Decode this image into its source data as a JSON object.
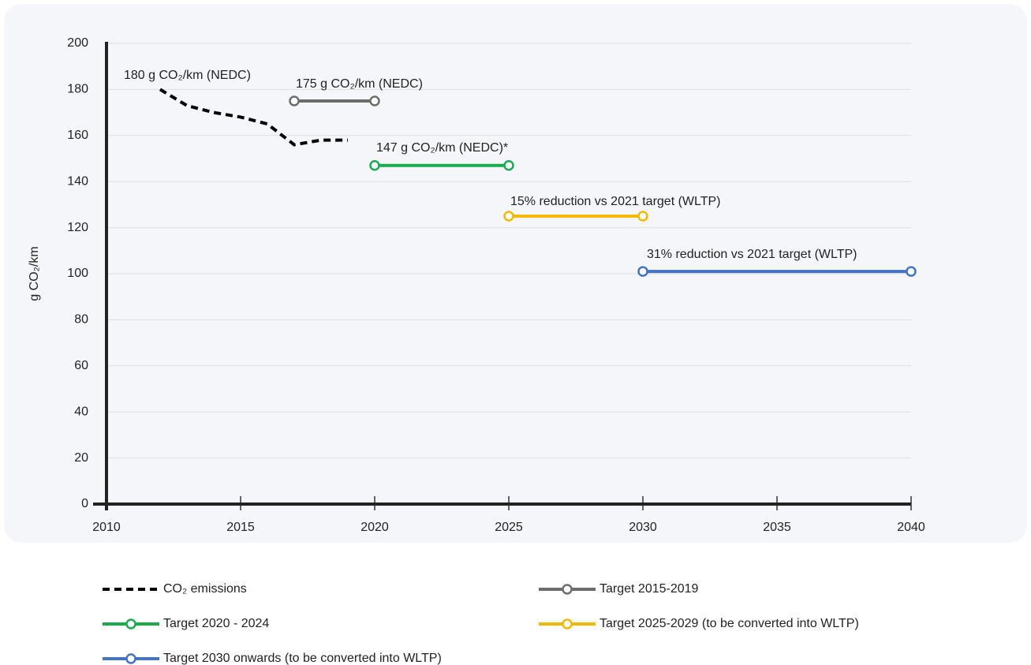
{
  "chart_data": {
    "type": "line",
    "y_label": "g CO₂/km",
    "xlim": [
      2010,
      2040
    ],
    "xticks": [
      2010,
      2015,
      2020,
      2025,
      2030,
      2035,
      2040
    ],
    "ylim": [
      0,
      200
    ],
    "yticks": [
      0,
      20,
      40,
      60,
      80,
      100,
      120,
      140,
      160,
      180,
      200
    ],
    "grid": true,
    "series": [
      {
        "name": "CO₂ emissions",
        "color": "#000000",
        "style": "dashed",
        "x": [
          2012,
          2013,
          2014,
          2015,
          2016,
          2017,
          2018,
          2019
        ],
        "values": [
          180,
          173,
          170,
          168,
          165,
          156,
          158,
          158
        ]
      },
      {
        "name": "Target 2015-2019",
        "color": "#6d6d6d",
        "marker": "circle",
        "x": [
          2017,
          2020
        ],
        "values": [
          175,
          175
        ]
      },
      {
        "name": "Target 2020 - 2024",
        "color": "#1aab4b",
        "marker": "circle",
        "x": [
          2020,
          2025
        ],
        "values": [
          147,
          147
        ]
      },
      {
        "name": "Target 2025-2029 (to be converted into WLTP)",
        "color": "#f5b800",
        "marker": "circle",
        "x": [
          2025,
          2030
        ],
        "values": [
          125,
          125
        ]
      },
      {
        "name": "Target 2030 onwards (to be converted into WLTP)",
        "color": "#4472c4",
        "marker": "circle",
        "x": [
          2030,
          2040
        ],
        "values": [
          101,
          101
        ]
      }
    ],
    "annotations": [
      "180 g CO₂/km (NEDC)",
      "175 g CO₂/km (NEDC)",
      "147 g CO₂/km (NEDC)*",
      "15% reduction vs 2021 target (WLTP)",
      "31% reduction vs 2021 target (WLTP)"
    ]
  }
}
